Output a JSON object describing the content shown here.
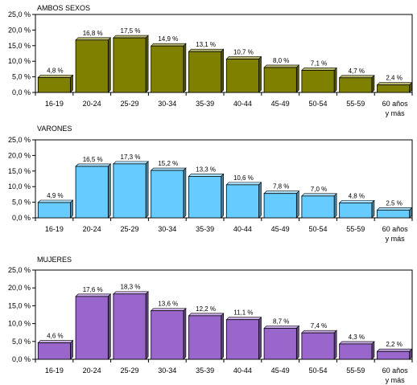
{
  "chart_data": [
    {
      "type": "bar",
      "title": "AMBOS SEXOS",
      "categories": [
        "16-19",
        "20-24",
        "25-29",
        "30-34",
        "35-39",
        "40-44",
        "45-49",
        "50-54",
        "55-59",
        "60 años y más"
      ],
      "values": [
        4.8,
        16.8,
        17.5,
        14.9,
        13.1,
        10.7,
        8.0,
        7.1,
        4.7,
        2.4
      ],
      "data_labels": [
        "4,8 %",
        "16,8 %",
        "17,5 %",
        "14,9 %",
        "13,1 %",
        "10,7 %",
        "8,0 %",
        "7,1 %",
        "4,7 %",
        "2,4 %"
      ],
      "y_ticks": [
        "0,0 %",
        "5,0 %",
        "10,0 %",
        "15,0 %",
        "20,0 %",
        "25,0 %"
      ],
      "ylim": [
        0,
        25
      ],
      "grid": false,
      "color": "#7f7f00"
    },
    {
      "type": "bar",
      "title": "VARONES",
      "categories": [
        "16-19",
        "20-24",
        "25-29",
        "30-34",
        "35-39",
        "40-44",
        "45-49",
        "50-54",
        "55-59",
        "60 años y más"
      ],
      "values": [
        4.9,
        16.5,
        17.3,
        15.2,
        13.3,
        10.6,
        7.8,
        7.0,
        4.8,
        2.5
      ],
      "data_labels": [
        "4,9 %",
        "16,5 %",
        "17,3 %",
        "15,2 %",
        "13,3 %",
        "10,6 %",
        "7,8 %",
        "7,0 %",
        "4,8 %",
        "2,5 %"
      ],
      "y_ticks": [
        "0,0 %",
        "5,0 %",
        "10,0 %",
        "15,0 %",
        "20,0 %",
        "25,0 %"
      ],
      "ylim": [
        0,
        25
      ],
      "grid": false,
      "color": "#66ccff"
    },
    {
      "type": "bar",
      "title": "MUJERES",
      "categories": [
        "16-19",
        "20-24",
        "25-29",
        "30-34",
        "35-39",
        "40-44",
        "45-49",
        "50-54",
        "55-59",
        "60 años y más"
      ],
      "values": [
        4.6,
        17.6,
        18.3,
        13.6,
        12.2,
        11.1,
        8.7,
        7.4,
        4.3,
        2.2
      ],
      "data_labels": [
        "4,6 %",
        "17,6 %",
        "18,3 %",
        "13,6 %",
        "12,2 %",
        "11,1 %",
        "8,7 %",
        "7,4 %",
        "4,3 %",
        "2,2 %"
      ],
      "y_ticks": [
        "0,0 %",
        "5,0 %",
        "10,0 %",
        "15,0 %",
        "20,0 %",
        "25,0 %"
      ],
      "ylim": [
        0,
        25
      ],
      "grid": false,
      "color": "#9966cc"
    }
  ]
}
